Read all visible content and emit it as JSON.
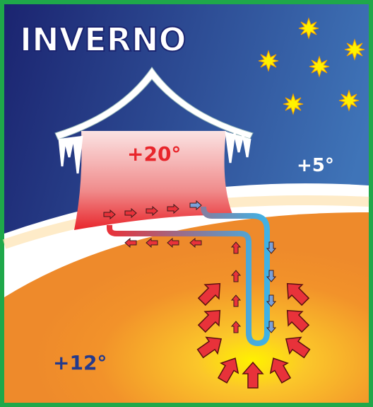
{
  "title": "INVERNO",
  "labels": {
    "house": "+20°",
    "air": "+5°",
    "ground": "+12°"
  }
}
